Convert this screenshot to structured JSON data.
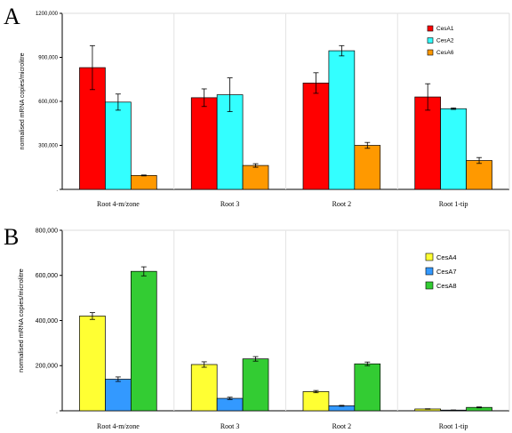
{
  "panels": [
    {
      "letter": "A",
      "chart_data": {
        "type": "bar",
        "categories": [
          "Root 4-m/zone",
          "Root 3",
          "Root 2",
          "Root 1-tip"
        ],
        "ylabel": "normalised mRNA copies/microlitre",
        "ylim": [
          0,
          1200000
        ],
        "yticks": [
          0,
          300000,
          600000,
          900000,
          1200000
        ],
        "ytick_labels": [
          ".",
          "300,000",
          "600,000",
          "900,000",
          "1200,000"
        ],
        "legend_position": "top-right",
        "grid": false,
        "series": [
          {
            "name": "CesA1",
            "color": "#ff0000",
            "values": [
              830000,
              625000,
              725000,
              630000
            ],
            "errors": [
              150000,
              60000,
              70000,
              90000
            ]
          },
          {
            "name": "CesA2",
            "color": "#33ffff",
            "values": [
              595000,
              645000,
              945000,
              550000
            ],
            "errors": [
              55000,
              115000,
              35000,
              5000
            ]
          },
          {
            "name": "CesA6",
            "color": "#ff9900",
            "values": [
              95000,
              163000,
              300000,
              197000
            ],
            "errors": [
              3000,
              12000,
              20000,
              20000
            ]
          }
        ]
      }
    },
    {
      "letter": "B",
      "chart_data": {
        "type": "bar",
        "categories": [
          "Root 4-m/zone",
          "Root 3",
          "Root 2",
          "Root 1-tip"
        ],
        "ylabel": "normalised mRNA copies/microlitre",
        "ylim": [
          0,
          800000
        ],
        "yticks": [
          0,
          200000,
          400000,
          600000,
          800000
        ],
        "ytick_labels": [
          ".",
          "200,000",
          "400,000",
          "600,000",
          "800,000"
        ],
        "legend_position": "top-right",
        "grid": false,
        "series": [
          {
            "name": "CesA4",
            "color": "#ffff33",
            "values": [
              420000,
              205000,
              85000,
              8000
            ],
            "errors": [
              15000,
              12000,
              5000,
              1000
            ]
          },
          {
            "name": "CesA7",
            "color": "#3399ff",
            "values": [
              140000,
              55000,
              22000,
              3000
            ],
            "errors": [
              10000,
              5000,
              2000,
              500
            ]
          },
          {
            "name": "CesA8",
            "color": "#33cc33",
            "values": [
              618000,
              230000,
              208000,
              15000
            ],
            "errors": [
              20000,
              10000,
              8000,
              2000
            ]
          }
        ]
      }
    }
  ]
}
